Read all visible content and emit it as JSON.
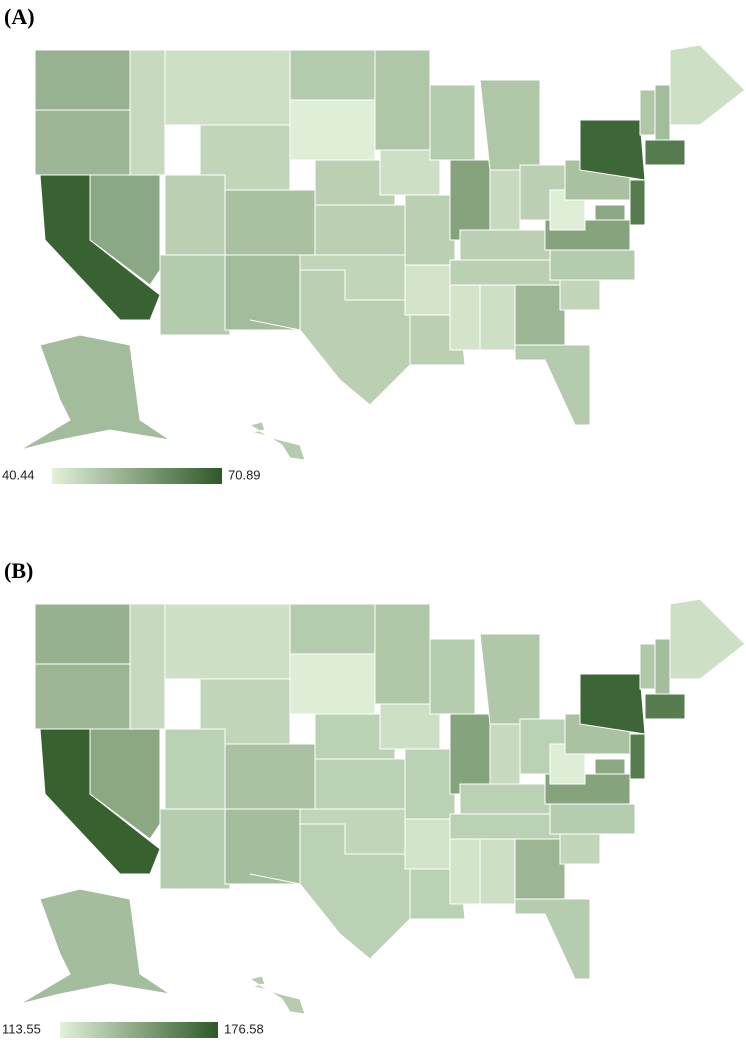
{
  "color_low": "#e2f1da",
  "color_high": "#2d5926",
  "maps": [
    {
      "label": "(A)",
      "legend_min": 40.44,
      "legend_max": 70.89,
      "values": [
        53,
        52,
        69,
        55,
        45,
        44,
        46,
        47,
        50,
        48,
        51,
        48,
        41,
        47,
        47,
        46,
        47,
        49,
        44,
        47,
        43,
        47,
        48,
        56,
        49,
        45,
        47,
        47,
        47,
        43,
        44,
        52,
        48,
        46,
        48,
        56,
        41,
        50,
        68,
        64,
        55,
        49,
        51,
        64,
        44,
        51,
        48
      ]
    },
    {
      "label": "(B)",
      "legend_min": 113.55,
      "legend_max": 176.58,
      "values": [
        140,
        138,
        173,
        144,
        123,
        121,
        125,
        127,
        133,
        129,
        135,
        129,
        115,
        127,
        127,
        125,
        127,
        131,
        121,
        127,
        119,
        127,
        129,
        146,
        131,
        123,
        127,
        127,
        127,
        119,
        121,
        138,
        129,
        125,
        129,
        146,
        115,
        133,
        171,
        162,
        144,
        131,
        135,
        162,
        121,
        135,
        129
      ]
    }
  ]
}
